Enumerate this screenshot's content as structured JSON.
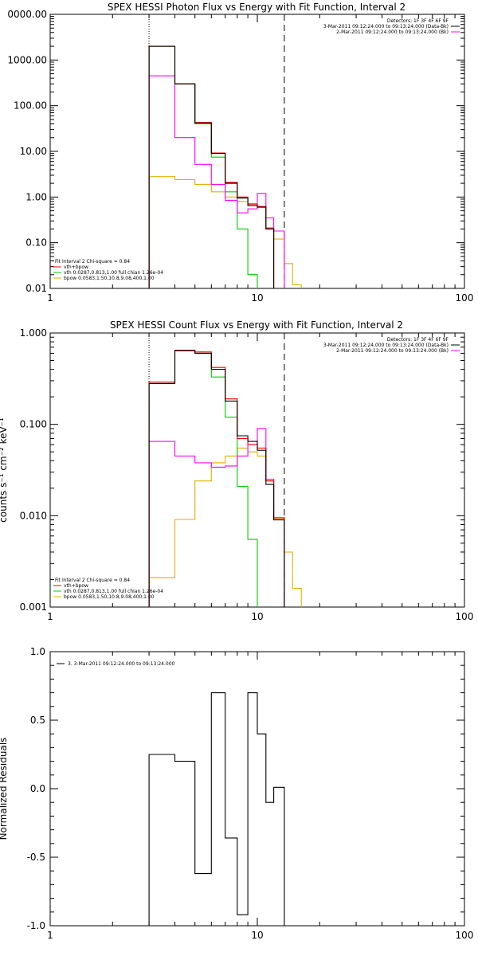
{
  "colors": {
    "data": "#000000",
    "total": "#ff0000",
    "vth": "#00cc00",
    "bpow": "#e0b000",
    "bk": "#ff00ff"
  },
  "chart_data": [
    {
      "type": "line",
      "title": "SPEX HESSI Photon Flux vs Energy with Fit Function, Interval 2",
      "xlabel": "",
      "ylabel": "",
      "xscale": "log",
      "yscale": "log",
      "xlim": [
        1,
        100
      ],
      "ylim": [
        0.01,
        10000
      ],
      "x_ticks": [
        "1",
        "10",
        "100"
      ],
      "y_ticks": [
        "0.01",
        "0.10",
        "1.00",
        "10.00",
        "100.00",
        "1000.00",
        "0000.00"
      ],
      "legend_topright": [
        "Detectors: 1F 3F 4F 6F 9F",
        "3-Mar-2011 09:12:24.000 to 09:13:24.000 (Data-Bk)",
        "2-Mar-2011 09:12:24.000 to 09:13:24.000 (Bk)"
      ],
      "legend_bottomleft": [
        "Fit Interval 2   Chi-square = 0.84",
        "vth+bpow",
        "vth 0.0287,0.813,1.00  full chian 1.26e-04",
        "bpow 0.0583,1.50,10.8,9.08,400,1.00"
      ],
      "vlines": {
        "dotted": 3.0,
        "dashed": 13.5
      },
      "series": [
        {
          "key": "data",
          "edges": [
            3,
            4,
            5,
            6,
            7,
            8,
            9,
            10,
            11,
            12,
            13.5
          ],
          "values": [
            2000,
            300,
            42,
            9,
            2,
            0.95,
            0.65,
            0.6,
            0.2,
            0.009
          ]
        },
        {
          "key": "total",
          "edges": [
            3,
            4,
            5,
            6,
            7,
            8,
            9,
            10,
            11,
            12,
            13.5
          ],
          "values": [
            2000,
            300,
            43,
            9.2,
            2.1,
            1.0,
            0.7,
            0.62,
            0.21,
            0.009
          ]
        },
        {
          "key": "vth",
          "edges": [
            3,
            4,
            5,
            6,
            7,
            8,
            9,
            10
          ],
          "values": [
            2000,
            300,
            40,
            7.5,
            1.3,
            0.2,
            0.02
          ]
        },
        {
          "key": "bpow",
          "edges": [
            3,
            4,
            5,
            6,
            7,
            8,
            9,
            10,
            11,
            12,
            13.5,
            14.8,
            16.3
          ],
          "values": [
            2.8,
            2.4,
            1.9,
            1.3,
            1.0,
            0.8,
            0.72,
            0.6,
            0.2,
            0.12,
            0.035,
            0.012
          ]
        },
        {
          "key": "bk",
          "edges": [
            3,
            4,
            5,
            6,
            7,
            8,
            9,
            10,
            11,
            12,
            13.5
          ],
          "values": [
            450,
            20,
            5.2,
            1.9,
            0.85,
            0.45,
            0.55,
            1.2,
            0.35,
            0.18
          ]
        }
      ]
    },
    {
      "type": "line",
      "title": "SPEX HESSI Count Flux vs Energy with Fit Function, Interval 2",
      "xlabel": "",
      "ylabel": "counts s⁻¹ cm⁻² keV⁻¹",
      "xscale": "log",
      "yscale": "log",
      "xlim": [
        1,
        100
      ],
      "ylim": [
        0.001,
        1.0
      ],
      "x_ticks": [
        "1",
        "10",
        "100"
      ],
      "y_ticks": [
        "0.001",
        "0.010",
        "0.100",
        "1.000"
      ],
      "legend_topright": [
        "Detectors: 1F 3F 4F 6F 9F",
        "3-Mar-2011 09:12:24.000 to 09:13:24.000 (Data-Bk)",
        "2-Mar-2011 09:12:24.000 to 09:13:24.000 (Bk)"
      ],
      "legend_bottomleft": [
        "Fit Interval 2   Chi-square = 0.84",
        "vth+bpow",
        "vth 0.0287,0.813,1.00  full chian 1.26e-04",
        "bpow 0.0583,1.50,10.8,9.08,400,1.00"
      ],
      "vlines": {
        "dotted": 3.0,
        "dashed": 13.5
      },
      "series": [
        {
          "key": "data",
          "edges": [
            3,
            4,
            5,
            6,
            7,
            8,
            9,
            10,
            11,
            12,
            13.5
          ],
          "values": [
            0.28,
            0.64,
            0.6,
            0.4,
            0.18,
            0.075,
            0.065,
            0.052,
            0.022,
            0.009
          ]
        },
        {
          "key": "total",
          "edges": [
            3,
            4,
            5,
            6,
            7,
            8,
            9,
            10,
            11,
            12,
            13.5
          ],
          "values": [
            0.29,
            0.65,
            0.62,
            0.42,
            0.19,
            0.07,
            0.06,
            0.055,
            0.024,
            0.0095
          ]
        },
        {
          "key": "vth",
          "edges": [
            3,
            4,
            5,
            6,
            7,
            8,
            9,
            10
          ],
          "values": [
            0.28,
            0.64,
            0.6,
            0.33,
            0.12,
            0.021,
            0.0055
          ]
        },
        {
          "key": "bpow",
          "edges": [
            3,
            4,
            5,
            6,
            7,
            8,
            9,
            10,
            11,
            12,
            13.5,
            14.8,
            16.3
          ],
          "values": [
            0.0021,
            0.0091,
            0.024,
            0.038,
            0.045,
            0.055,
            0.05,
            0.045,
            0.024,
            0.0093,
            0.004,
            0.0016
          ]
        },
        {
          "key": "bk",
          "edges": [
            3,
            4,
            5,
            6,
            7,
            8,
            9,
            10,
            11,
            12,
            13.5
          ],
          "values": [
            0.065,
            0.045,
            0.038,
            0.034,
            0.035,
            0.045,
            0.06,
            0.09,
            0.025,
            0.0095
          ]
        }
      ]
    },
    {
      "type": "line",
      "title": "",
      "xlabel": "",
      "ylabel": "Normalized Residuals",
      "xscale": "log",
      "yscale": "linear",
      "xlim": [
        1,
        100
      ],
      "ylim": [
        -1.0,
        1.0
      ],
      "x_ticks": [
        "1",
        "10",
        "100"
      ],
      "y_ticks": [
        "-1.0",
        "-0.5",
        "0.0",
        "0.5",
        "1.0"
      ],
      "legend_topleft": [
        "3.  3-Mar-2011 09:12:24.000 to 09:13:24.000"
      ],
      "series": [
        {
          "key": "data",
          "edges": [
            3,
            4,
            5,
            6,
            7,
            8,
            9,
            10,
            11,
            12,
            13.5
          ],
          "values": [
            0.25,
            0.2,
            -0.62,
            0.7,
            -0.36,
            -0.92,
            0.7,
            0.4,
            -0.1,
            0.01
          ]
        }
      ]
    }
  ]
}
